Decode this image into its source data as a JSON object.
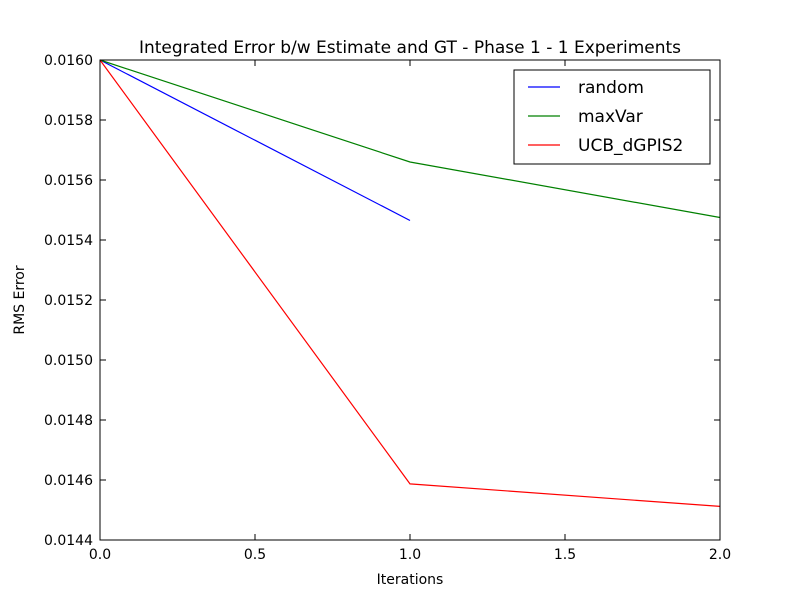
{
  "chart_data": {
    "type": "line",
    "title": "Integrated Error b/w Estimate and GT - Phase 1 - 1 Experiments",
    "xlabel": "Iterations",
    "ylabel": "RMS Error",
    "xlim": [
      0.0,
      2.0
    ],
    "ylim": [
      0.0144,
      0.016
    ],
    "xticks": [
      "0.0",
      "0.5",
      "1.0",
      "1.5",
      "2.0"
    ],
    "yticks": [
      "0.0144",
      "0.0146",
      "0.0148",
      "0.0150",
      "0.0152",
      "0.0154",
      "0.0156",
      "0.0158",
      "0.0160"
    ],
    "grid": false,
    "legend_position": "top-right",
    "series": [
      {
        "name": "random",
        "color": "#0000ff",
        "x": [
          0,
          1
        ],
        "y": [
          0.016,
          0.015465
        ]
      },
      {
        "name": "maxVar",
        "color": "#008000",
        "x": [
          0,
          1,
          2
        ],
        "y": [
          0.016,
          0.01566,
          0.015475
        ]
      },
      {
        "name": "UCB_dGPIS2",
        "color": "#ff0000",
        "x": [
          0,
          1,
          2
        ],
        "y": [
          0.016,
          0.014587,
          0.014512
        ]
      }
    ]
  }
}
